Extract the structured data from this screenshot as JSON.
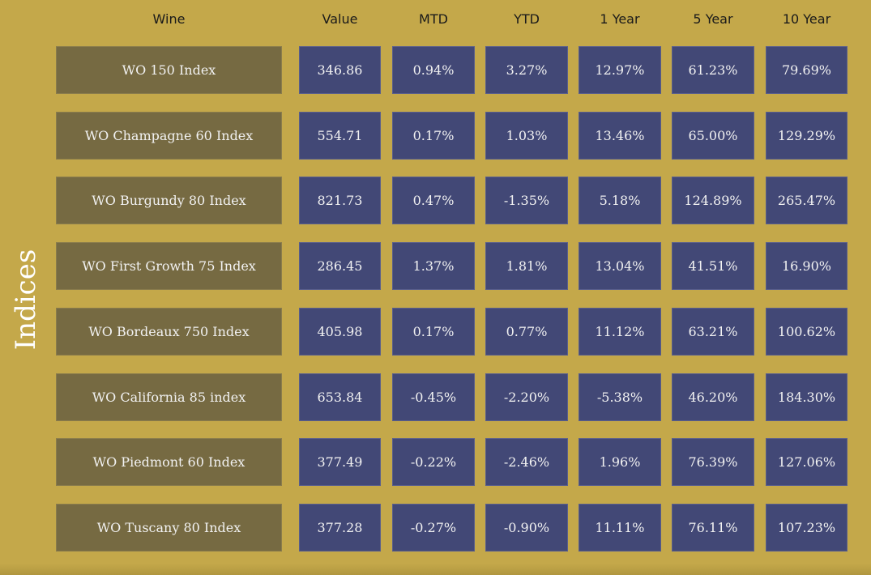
{
  "side_label": "Indices",
  "headers": [
    "Wine",
    "Value",
    "MTD",
    "YTD",
    "1 Year",
    "5 Year",
    "10 Year"
  ],
  "rows": [
    {
      "name": "WO 150 Index",
      "values": [
        "346.86",
        "0.94%",
        "3.27%",
        "12.97%",
        "61.23%",
        "79.69%"
      ]
    },
    {
      "name": "WO Champagne 60 Index",
      "values": [
        "554.71",
        "0.17%",
        "1.03%",
        "13.46%",
        "65.00%",
        "129.29%"
      ]
    },
    {
      "name": "WO Burgundy 80 Index",
      "values": [
        "821.73",
        "0.47%",
        "-1.35%",
        "5.18%",
        "124.89%",
        "265.47%"
      ]
    },
    {
      "name": "WO First Growth 75 Index",
      "values": [
        "286.45",
        "1.37%",
        "1.81%",
        "13.04%",
        "41.51%",
        "16.90%"
      ]
    },
    {
      "name": "WO Bordeaux 750 Index",
      "values": [
        "405.98",
        "0.17%",
        "0.77%",
        "11.12%",
        "63.21%",
        "100.62%"
      ]
    },
    {
      "name": "WO California 85 index",
      "values": [
        "653.84",
        "-0.45%",
        "-2.20%",
        "-5.38%",
        "46.20%",
        "184.30%"
      ]
    },
    {
      "name": "WO Piedmont 60 Index",
      "values": [
        "377.49",
        "-0.22%",
        "-2.46%",
        "1.96%",
        "76.39%",
        "127.06%"
      ]
    },
    {
      "name": "WO Tuscany 80 Index",
      "values": [
        "377.28",
        "-0.27%",
        "-0.90%",
        "11.11%",
        "76.11%",
        "107.23%"
      ]
    }
  ]
}
